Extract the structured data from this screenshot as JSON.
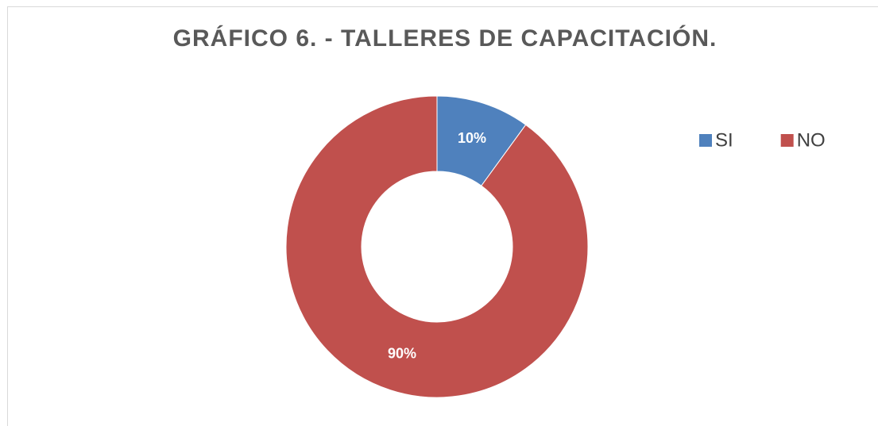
{
  "chart_data": {
    "type": "donut",
    "title": "GRÁFICO 6. - TALLERES DE CAPACITACIÓN.",
    "categories": [
      "SI",
      "NO"
    ],
    "values": [
      10,
      90
    ],
    "value_labels": [
      "10%",
      "90%"
    ],
    "colors": [
      "#4f81bd",
      "#c0504d"
    ],
    "legend": "top-right"
  }
}
